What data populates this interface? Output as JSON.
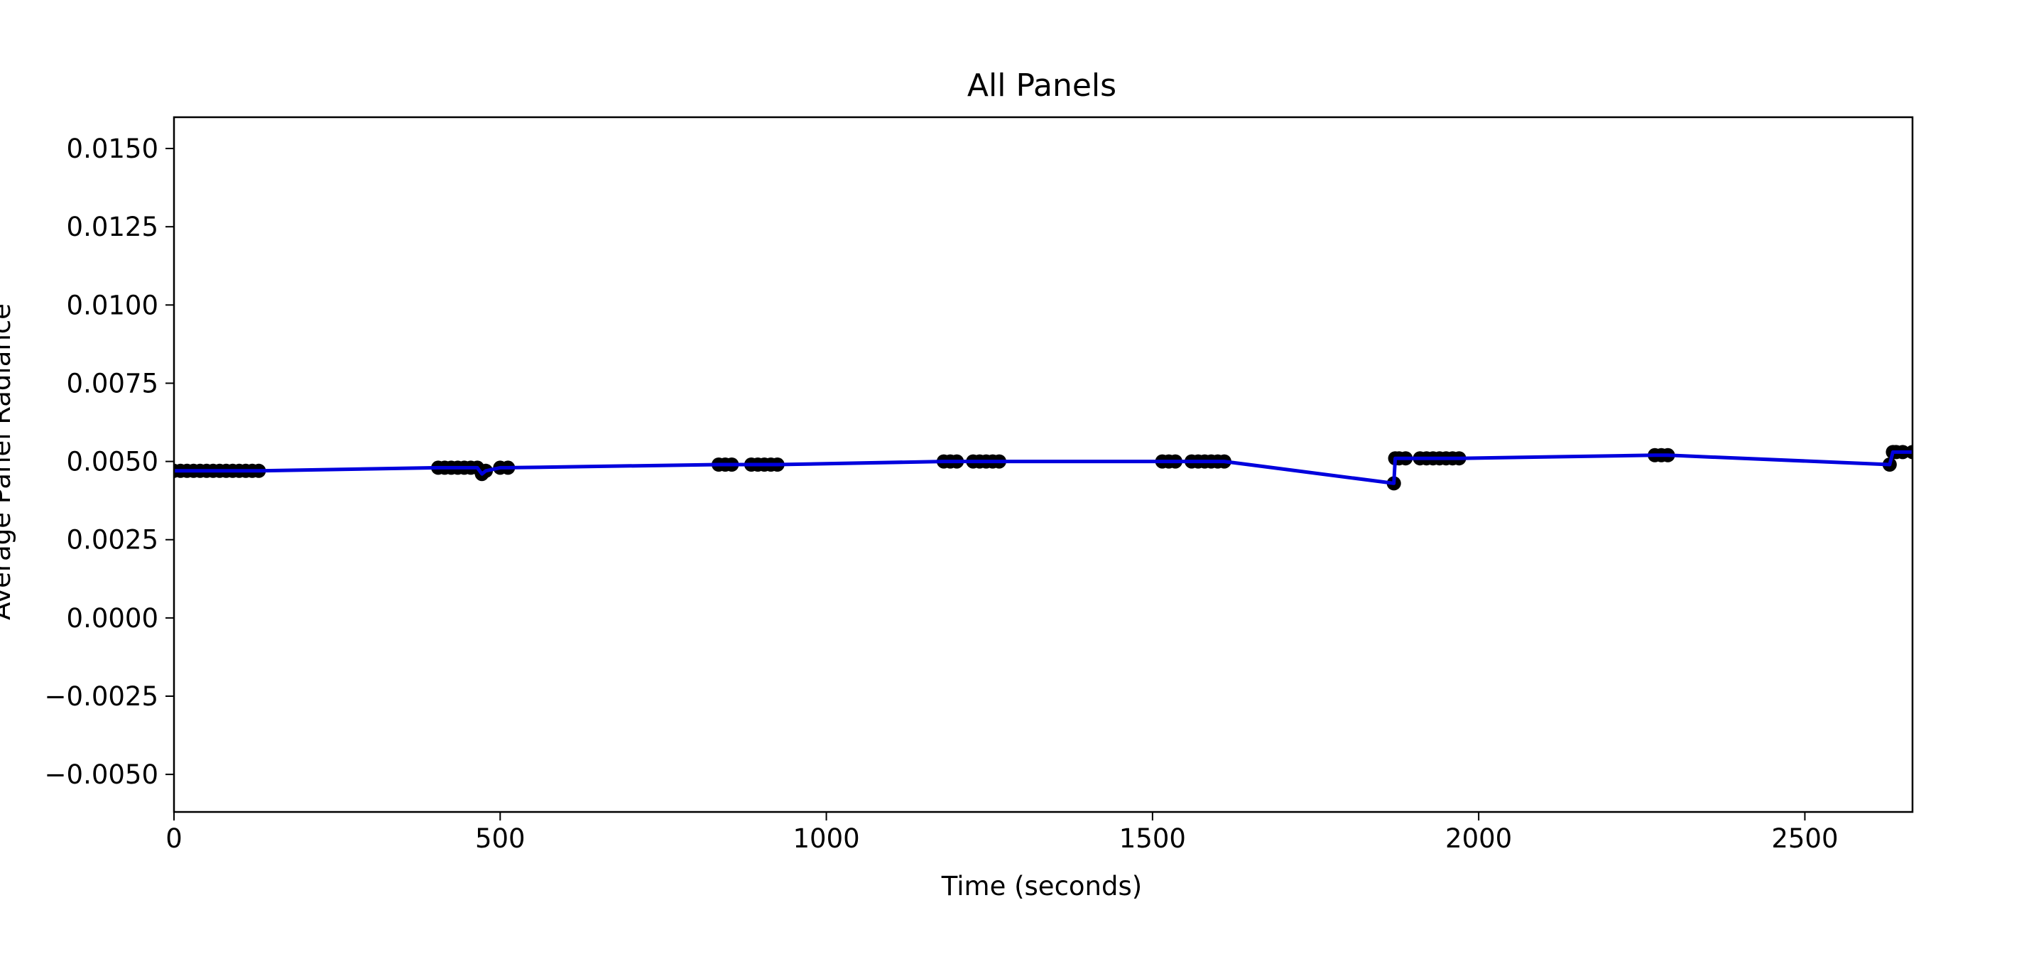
{
  "chart_data": {
    "type": "line",
    "title": "All Panels",
    "xlabel": "Time (seconds)",
    "ylabel": "Average Panel Radiance",
    "xlim": [
      0,
      2665
    ],
    "ylim": [
      -0.0062,
      0.016
    ],
    "x_ticks": [
      0,
      500,
      1000,
      1500,
      2000,
      2500
    ],
    "x_tick_labels": [
      "0",
      "500",
      "1000",
      "1500",
      "2000",
      "2500"
    ],
    "y_ticks": [
      -0.005,
      -0.0025,
      0.0,
      0.0025,
      0.005,
      0.0075,
      0.01,
      0.0125,
      0.015
    ],
    "y_tick_labels": [
      "−0.0050",
      "−0.0025",
      "0.0000",
      "0.0025",
      "0.0050",
      "0.0075",
      "0.0100",
      "0.0125",
      "0.0150"
    ],
    "grid": false,
    "line_color": "#0000dd",
    "marker_color": "#000000",
    "series": [
      {
        "x": [
          0,
          10,
          20,
          30,
          40,
          50,
          60,
          70,
          80,
          90,
          100,
          110,
          120,
          130,
          405,
          415,
          425,
          435,
          445,
          455,
          465,
          472,
          478,
          500,
          512,
          835,
          845,
          855,
          885,
          895,
          905,
          915,
          925,
          1180,
          1190,
          1200,
          1225,
          1235,
          1245,
          1255,
          1265,
          1515,
          1525,
          1535,
          1560,
          1570,
          1580,
          1590,
          1600,
          1610,
          1870,
          1872,
          1878,
          1888,
          1910,
          1920,
          1930,
          1940,
          1950,
          1960,
          1970,
          2270,
          2280,
          2290,
          2630,
          2635,
          2640,
          2650,
          2665
        ],
        "y": [
          0.0047,
          0.0047,
          0.0047,
          0.0047,
          0.0047,
          0.0047,
          0.0047,
          0.0047,
          0.0047,
          0.0047,
          0.0047,
          0.0047,
          0.0047,
          0.0047,
          0.0048,
          0.0048,
          0.0048,
          0.0048,
          0.0048,
          0.0048,
          0.0048,
          0.0046,
          0.0047,
          0.0048,
          0.0048,
          0.0049,
          0.0049,
          0.0049,
          0.0049,
          0.0049,
          0.0049,
          0.0049,
          0.0049,
          0.005,
          0.005,
          0.005,
          0.005,
          0.005,
          0.005,
          0.005,
          0.005,
          0.005,
          0.005,
          0.005,
          0.005,
          0.005,
          0.005,
          0.005,
          0.005,
          0.005,
          0.0043,
          0.0051,
          0.0051,
          0.0051,
          0.0051,
          0.0051,
          0.0051,
          0.0051,
          0.0051,
          0.0051,
          0.0051,
          0.0052,
          0.0052,
          0.0052,
          0.0049,
          0.0053,
          0.0053,
          0.0053,
          0.0053
        ]
      }
    ]
  }
}
